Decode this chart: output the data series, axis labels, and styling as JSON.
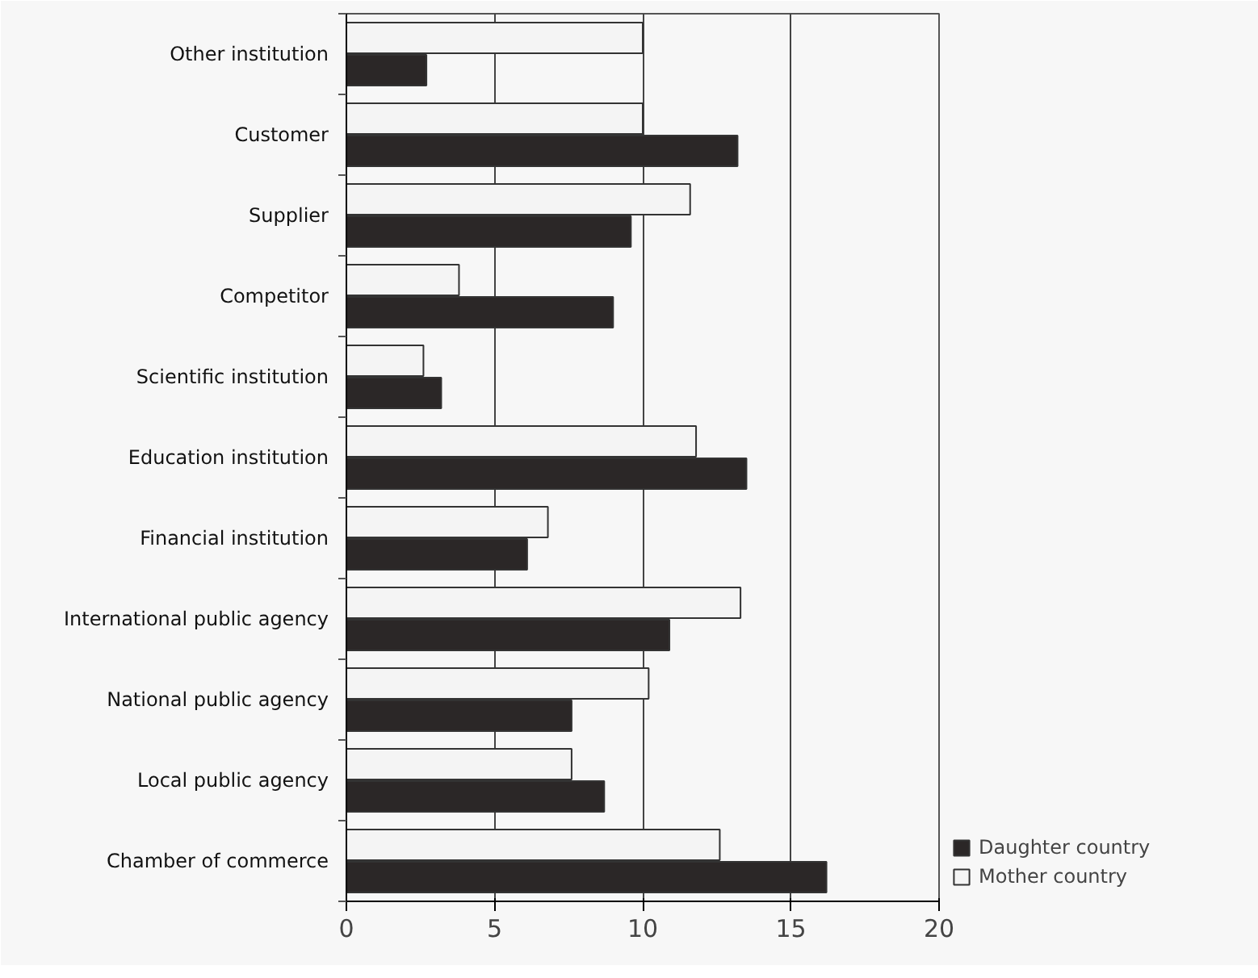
{
  "chart_data": {
    "type": "bar",
    "orientation": "horizontal",
    "categories": [
      "Other institution",
      "Customer",
      "Supplier",
      "Competitor",
      "Scientific institution",
      "Education institution",
      "Financial institution",
      "International public agency",
      "National public agency",
      "Local public agency",
      "Chamber of commerce"
    ],
    "series": [
      {
        "name": "Daughter country",
        "color": "#2b2727",
        "values": [
          2.7,
          13.2,
          9.6,
          9.0,
          3.2,
          13.5,
          6.1,
          10.9,
          7.6,
          8.7,
          16.2
        ]
      },
      {
        "name": "Mother country",
        "color": "#f4f4f4",
        "values": [
          10.0,
          10.0,
          11.6,
          3.8,
          2.6,
          11.8,
          6.8,
          13.3,
          10.2,
          7.6,
          12.6
        ]
      }
    ],
    "xlim": [
      0,
      20
    ],
    "xticks": [
      0,
      5,
      10,
      15,
      20
    ],
    "grid": "x",
    "legend": "bottom right"
  }
}
